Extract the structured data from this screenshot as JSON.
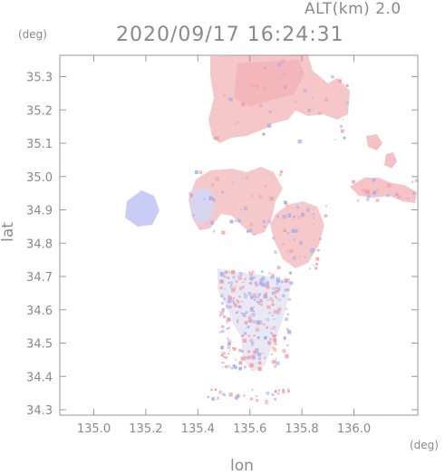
{
  "header": {
    "altitude": "ALT(km) 2.0",
    "timestamp": "2020/09/17 16:24:31"
  },
  "axes": {
    "x_label": "lon",
    "y_label": "lat",
    "x_unit": "(deg)",
    "y_unit": "(deg)",
    "x_ticks": [
      "135.0",
      "135.2",
      "135.4",
      "135.6",
      "135.8",
      "136.0"
    ],
    "y_ticks": [
      "35.3",
      "35.2",
      "35.1",
      "35.0",
      "34.9",
      "34.8",
      "34.7",
      "34.6",
      "34.5",
      "34.4",
      "34.3"
    ]
  },
  "colors": {
    "frame": "#9a9a9a",
    "positive": "#f4a0a4",
    "negative": "#a8b0f0",
    "text": "#8a8a8a"
  }
}
